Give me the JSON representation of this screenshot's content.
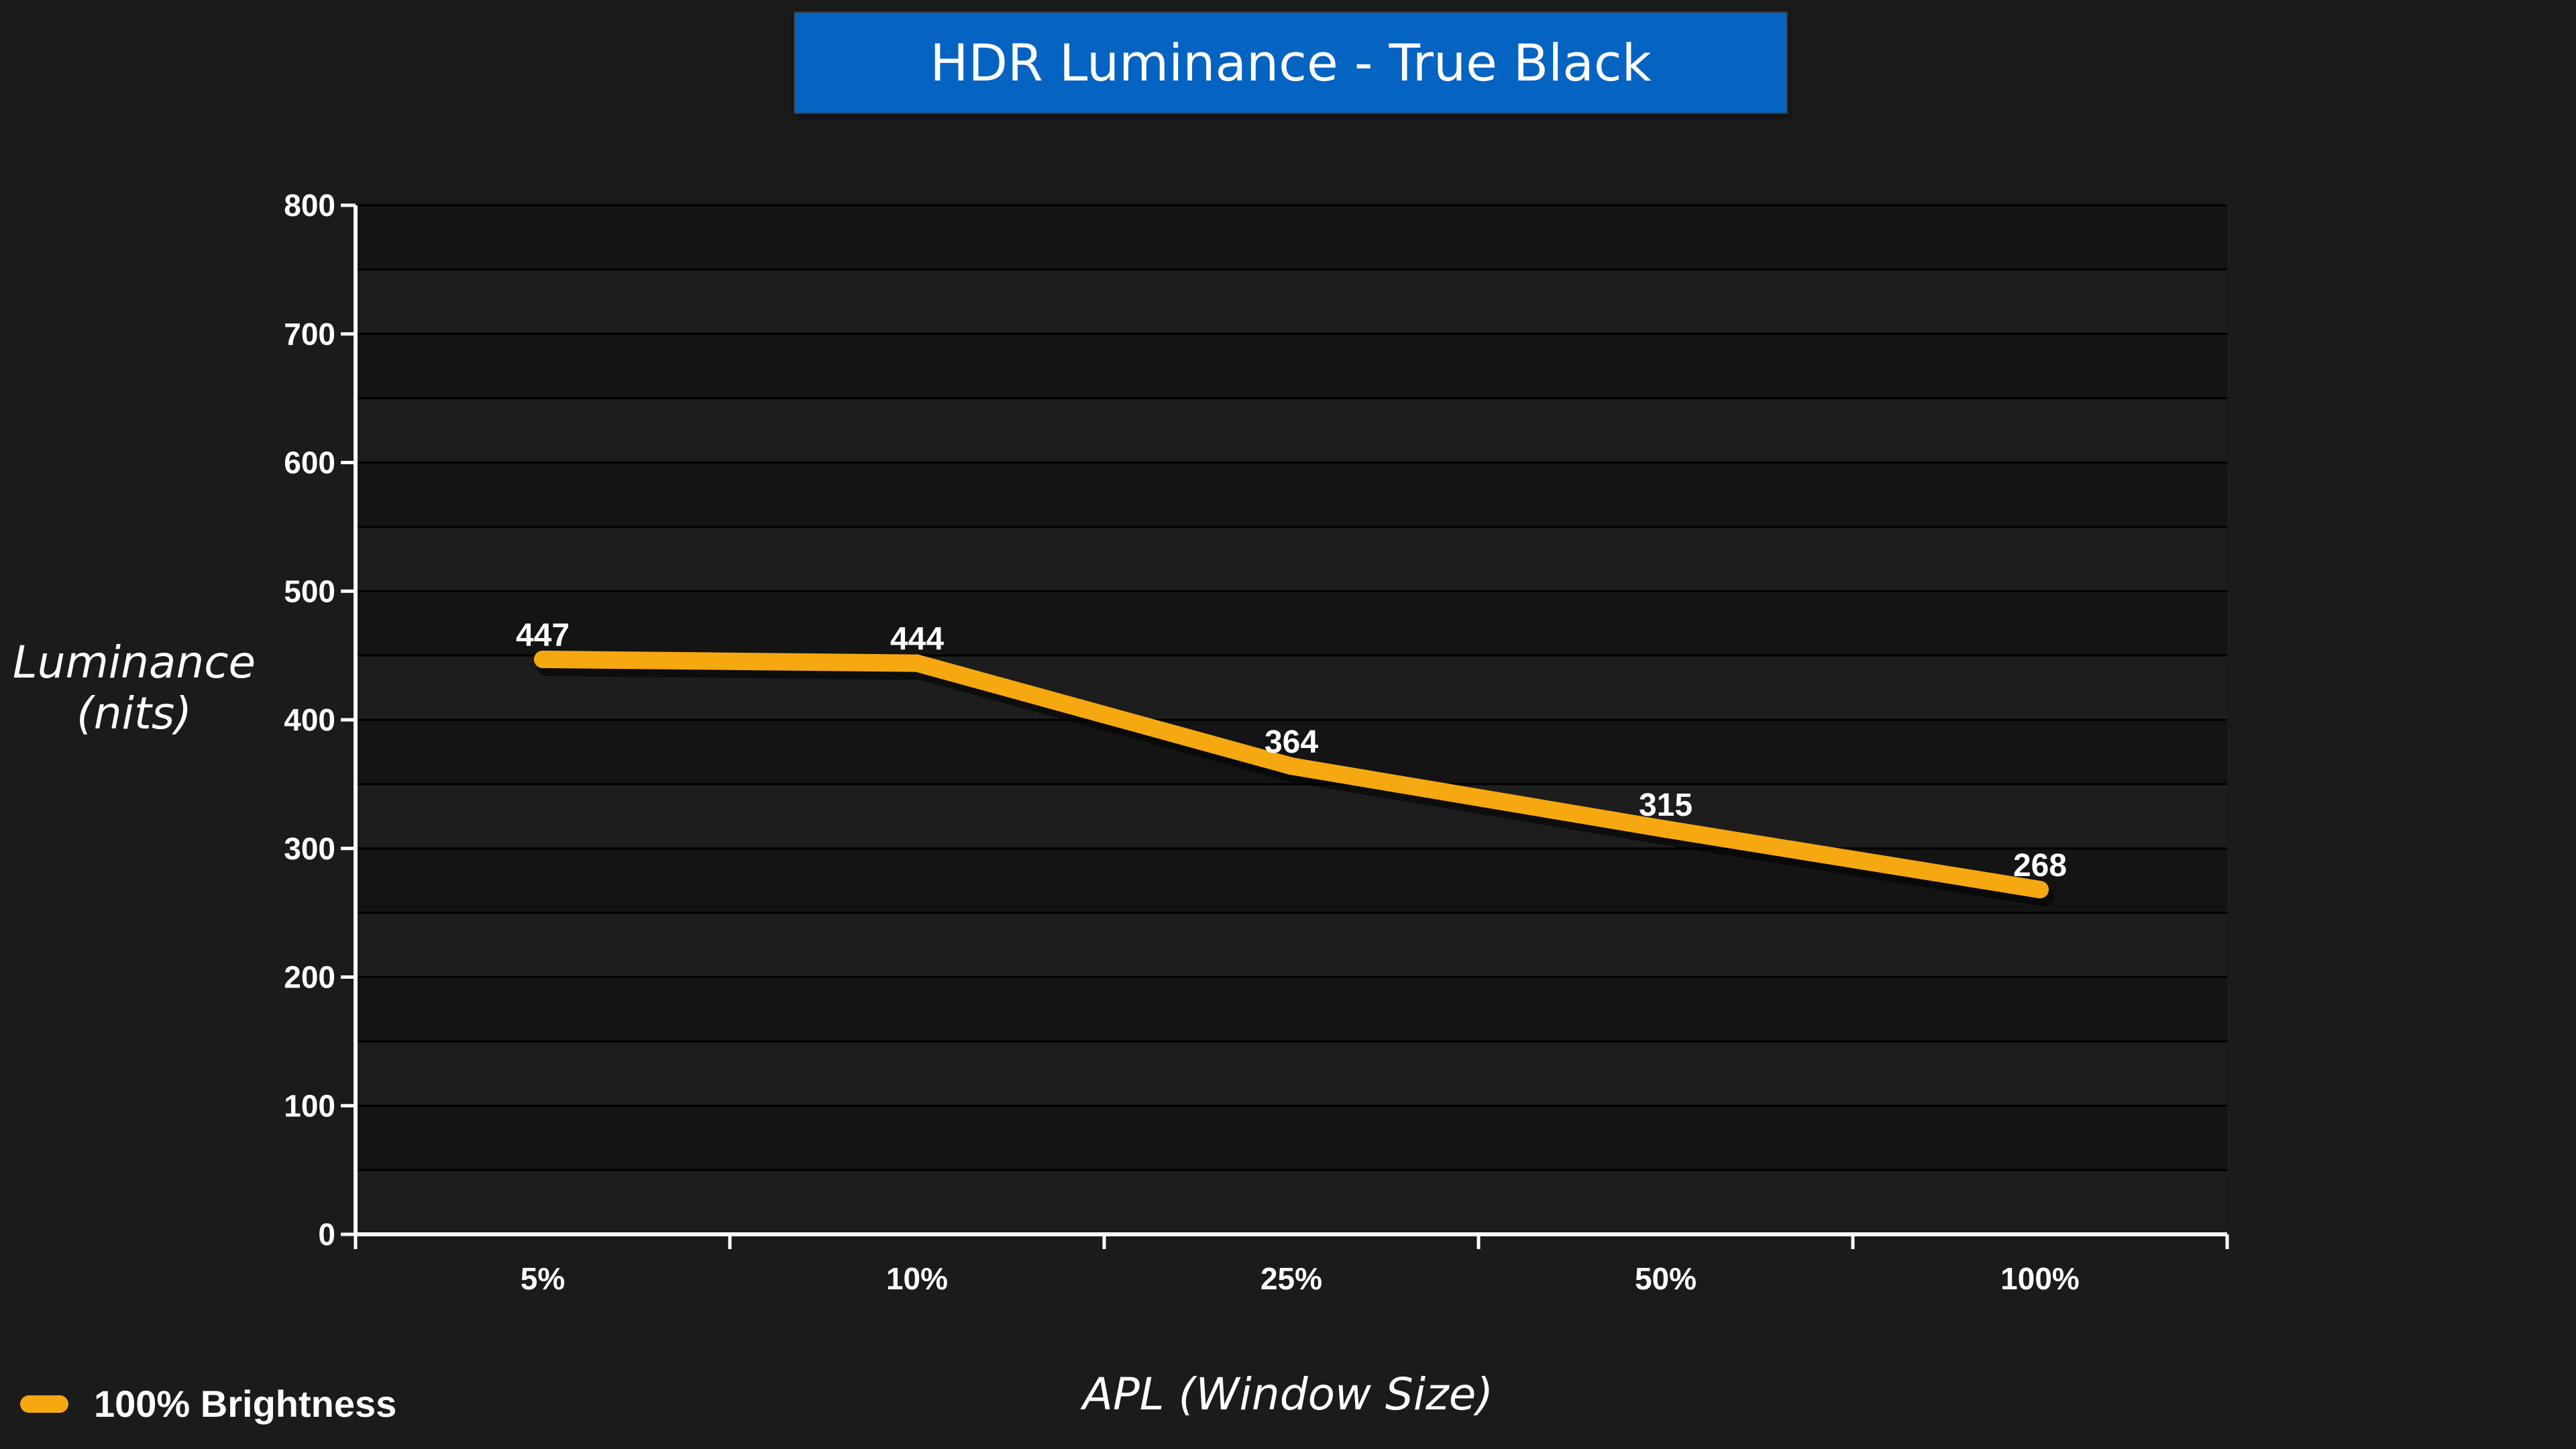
{
  "chart_data": {
    "type": "line",
    "title": "HDR Luminance - True Black",
    "xlabel": "APL (Window Size)",
    "ylabel": [
      "Luminance",
      "(nits)"
    ],
    "categories": [
      "5%",
      "10%",
      "25%",
      "50%",
      "100%"
    ],
    "series": [
      {
        "name": "100% Brightness",
        "values": [
          447,
          444,
          364,
          315,
          268
        ],
        "color": "#f5a80f"
      }
    ],
    "ylim": [
      0,
      800
    ],
    "yticks": [
      0,
      100,
      200,
      300,
      400,
      500,
      600,
      700,
      800
    ],
    "grid": true,
    "legend_position": "bottom-left"
  },
  "colors": {
    "background": "#1b1b1b",
    "plot_band_dark": "#141414",
    "plot_band_light": "#1d1d1d",
    "title_box": "#0563c1",
    "text": "#ffffff"
  }
}
